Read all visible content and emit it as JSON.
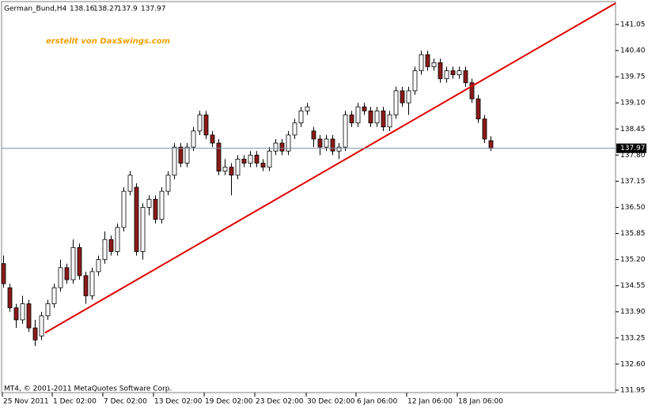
{
  "chart_data": {
    "type": "candlestick",
    "symbol": "German_Bund,H4",
    "watermark": "erstellt von DaxSwings.com",
    "copyright": "MT4, © 2001-2011 MetaQuotes Software Corp.",
    "open": [
      135.1,
      134.5,
      134.0,
      133.7,
      134.1,
      133.5,
      133.3,
      133.8,
      134.1,
      134.5,
      135.0,
      134.7,
      135.5,
      134.8,
      134.3,
      134.9,
      135.2,
      135.7,
      135.4,
      136.0,
      136.9,
      137.0,
      135.4,
      136.5,
      136.7,
      136.2,
      136.9,
      137.3,
      138.0,
      137.6,
      138.0,
      138.4,
      138.8,
      138.3,
      138.1,
      137.4,
      137.5,
      137.3,
      137.7,
      137.6,
      137.8,
      137.6,
      137.5,
      137.9,
      138.1,
      137.9,
      138.3,
      138.6,
      138.9,
      138.4,
      138.2,
      138.0,
      138.2,
      137.9,
      138.0,
      138.8,
      138.6,
      139.0,
      138.9,
      138.6,
      138.9,
      138.5,
      138.8,
      139.4,
      139.1,
      139.4,
      139.9,
      140.3,
      140.0,
      140.1,
      139.7,
      139.9,
      139.8,
      139.9,
      139.6,
      139.2,
      138.7,
      138.16
    ],
    "high": [
      135.3,
      134.6,
      134.1,
      134.3,
      134.2,
      133.7,
      133.9,
      134.2,
      134.6,
      135.2,
      135.1,
      135.7,
      135.6,
      134.9,
      135.0,
      135.3,
      135.9,
      135.8,
      136.1,
      137.0,
      137.4,
      137.1,
      136.6,
      136.8,
      136.8,
      137.0,
      137.4,
      138.1,
      138.1,
      138.1,
      138.5,
      138.9,
      138.9,
      138.4,
      138.2,
      137.7,
      137.6,
      137.8,
      137.8,
      137.9,
      137.9,
      137.7,
      138.0,
      138.2,
      138.2,
      138.4,
      138.7,
      139.0,
      139.1,
      138.5,
      138.3,
      138.3,
      138.3,
      138.1,
      138.9,
      138.9,
      139.1,
      139.1,
      139.0,
      139.0,
      139.0,
      138.9,
      139.5,
      139.5,
      139.5,
      140.0,
      140.4,
      140.4,
      140.2,
      140.2,
      140.0,
      140.0,
      140.0,
      140.0,
      139.7,
      139.3,
      138.8,
      138.27
    ],
    "low": [
      134.5,
      133.9,
      133.5,
      133.6,
      133.4,
      133.05,
      133.2,
      133.7,
      134.0,
      134.4,
      134.6,
      134.6,
      134.7,
      134.1,
      134.2,
      134.8,
      135.1,
      135.3,
      135.3,
      135.9,
      136.8,
      135.3,
      135.2,
      136.3,
      136.1,
      136.1,
      136.8,
      137.2,
      137.5,
      137.5,
      137.9,
      138.3,
      138.2,
      138.0,
      137.3,
      137.3,
      136.8,
      137.2,
      137.5,
      137.5,
      137.5,
      137.4,
      137.4,
      137.8,
      137.8,
      137.8,
      138.2,
      138.5,
      138.8,
      138.0,
      137.8,
      137.9,
      137.8,
      137.7,
      137.9,
      138.5,
      138.5,
      138.8,
      138.5,
      138.5,
      138.4,
      138.4,
      138.7,
      139.0,
      138.8,
      139.3,
      139.8,
      139.9,
      139.9,
      139.6,
      139.6,
      139.7,
      139.7,
      139.5,
      139.1,
      138.6,
      138.1,
      137.9
    ],
    "close": [
      134.6,
      134.0,
      133.7,
      134.1,
      133.5,
      133.2,
      133.8,
      134.1,
      134.5,
      135.0,
      134.7,
      135.5,
      134.8,
      134.3,
      134.9,
      135.2,
      135.7,
      135.4,
      136.0,
      136.9,
      137.3,
      135.4,
      136.5,
      136.7,
      136.2,
      136.9,
      137.3,
      138.0,
      137.6,
      138.0,
      138.4,
      138.8,
      138.3,
      138.1,
      137.4,
      137.5,
      137.3,
      137.7,
      137.6,
      137.8,
      137.6,
      137.5,
      137.9,
      138.1,
      137.9,
      138.3,
      138.6,
      138.9,
      139.0,
      138.2,
      138.0,
      138.2,
      137.9,
      138.0,
      138.8,
      138.6,
      139.0,
      138.9,
      138.6,
      138.9,
      138.5,
      138.8,
      139.4,
      139.1,
      139.4,
      139.9,
      140.3,
      140.0,
      140.1,
      139.7,
      139.9,
      139.8,
      139.9,
      139.6,
      139.2,
      138.7,
      138.2,
      137.97
    ],
    "up_color": "#ffffff",
    "down_color": "#8b1a1a",
    "trendline": {
      "x": [
        6.625,
        96.75
      ],
      "y": [
        133.38,
        141.58
      ],
      "color": "#e00000"
    },
    "xlim": [
      -0.25,
      96.75
    ],
    "xticks": [
      {
        "value": -0.125,
        "label": "25 Nov 2011"
      },
      {
        "value": 7.75,
        "label": "1 Dec 02:00"
      },
      {
        "value": 15.75,
        "label": "7 Dec 02:00"
      },
      {
        "value": 23.75,
        "label": "13 Dec 02:00"
      },
      {
        "value": 31.75,
        "label": "19 Dec 02:00"
      },
      {
        "value": 39.75,
        "label": "23 Dec 02:00"
      },
      {
        "value": 47.875,
        "label": "30 Dec 02:00"
      },
      {
        "value": 55.75,
        "label": "6 Jan 06:00"
      },
      {
        "value": 63.75,
        "label": "12 Jan 06:00"
      },
      {
        "value": 71.75,
        "label": "18 Jan 06:00"
      }
    ],
    "ylim": [
      131.89,
      141.62
    ],
    "yticks": [
      141.05,
      {
        "value": 140.4,
        "label": "140.40"
      },
      139.75,
      {
        "value": 139.1,
        "label": "139.10"
      },
      138.45,
      {
        "value": 137.8,
        "label": "137.80"
      },
      137.15,
      {
        "value": 136.5,
        "label": "136.50"
      },
      135.85,
      {
        "value": 135.2,
        "label": "135.20"
      },
      134.55,
      {
        "value": 133.9,
        "label": "133.90"
      },
      133.25,
      {
        "value": 132.6,
        "label": "132.60"
      },
      131.95
    ]
  }
}
